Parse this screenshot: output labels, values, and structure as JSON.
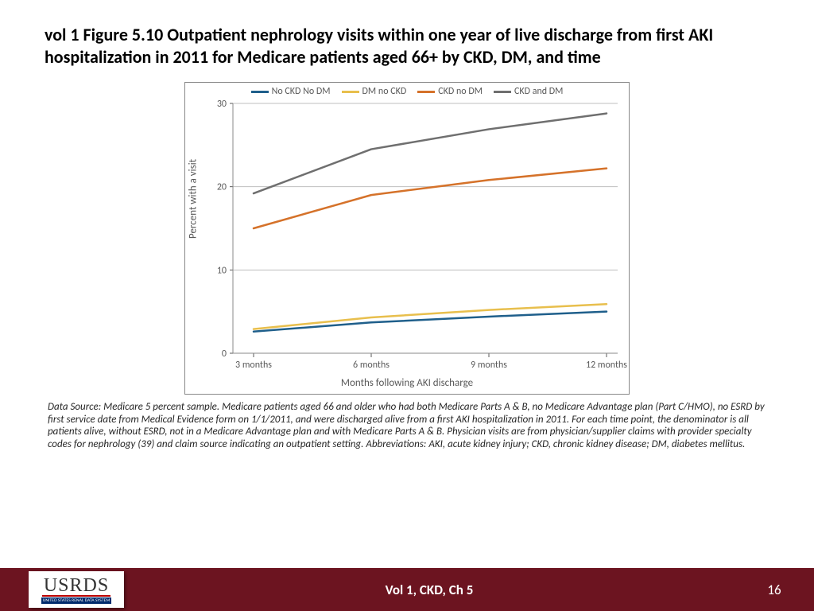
{
  "title": "vol 1 Figure 5.10  Outpatient nephrology visits within one year of live discharge from first AKI hospitalization in 2011 for Medicare patients aged 66+ by CKD, DM, and time",
  "chart": {
    "type": "line",
    "x_categories": [
      "3 months",
      "6 months",
      "9 months",
      "12 months"
    ],
    "x_label": "Months following AKI discharge",
    "y_label": "Percent with a visit",
    "ylim": [
      0,
      30
    ],
    "ytick_step": 10,
    "grid_color": "#bfbfbf",
    "border_color": "#888888",
    "background_color": "#ffffff",
    "label_fontsize": 13,
    "tick_fontsize": 12,
    "line_width": 2.5,
    "series": [
      {
        "name": "No CKD No DM",
        "color": "#1f5f8b",
        "values": [
          2.6,
          3.7,
          4.4,
          5.0
        ]
      },
      {
        "name": "DM no CKD",
        "color": "#e8bf4d",
        "values": [
          2.9,
          4.3,
          5.2,
          5.9
        ]
      },
      {
        "name": "CKD no DM",
        "color": "#d5722a",
        "values": [
          15.0,
          19.0,
          20.8,
          22.2
        ]
      },
      {
        "name": "CKD and DM",
        "color": "#6f6f6f",
        "values": [
          19.2,
          24.5,
          26.9,
          28.8
        ]
      }
    ]
  },
  "caption": "Data Source: Medicare 5 percent sample. Medicare patients aged 66 and older who had both Medicare Parts A & B, no Medicare Advantage plan (Part C/HMO), no ESRD by first service date from Medical Evidence form on 1/1/2011, and were discharged alive from a first AKI hospitalization in 2011. For each time point, the denominator is all patients alive, without ESRD, not in a Medicare Advantage plan and with Medicare Parts A & B. Physician visits are from physician/supplier claims with provider specialty codes for nephrology (39) and claim source indicating an outpatient setting. Abbreviations: AKI, acute kidney injury; CKD, chronic kidney disease; DM, diabetes mellitus.",
  "footer": {
    "logo_big": "USRDS",
    "logo_small": "UNITED STATES RENAL DATA SYSTEM",
    "center": "Vol 1, CKD, Ch 5",
    "page": "16",
    "background": "#6c1420"
  }
}
